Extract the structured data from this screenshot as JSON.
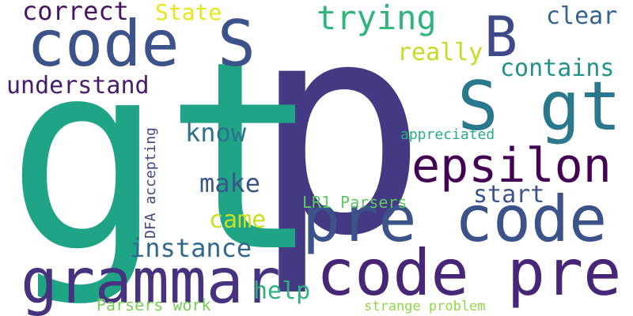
{
  "background_color": "#ffffff",
  "words": [
    {
      "id": "p",
      "text": "p",
      "color": "#443983"
    },
    {
      "id": "gt-large",
      "text": "gt",
      "color": "#20a486"
    },
    {
      "id": "code-s",
      "text": "code S",
      "color": "#3b528b"
    },
    {
      "id": "b",
      "text": "B",
      "color": "#3e4989"
    },
    {
      "id": "s-gt",
      "text": "S gt",
      "color": "#2a788e"
    },
    {
      "id": "pre-code-1",
      "text": "pre code",
      "color": "#3b528b"
    },
    {
      "id": "code-pre",
      "text": "code pre",
      "color": "#482677"
    },
    {
      "id": "grammar",
      "text": "grammar",
      "color": "#46327e"
    },
    {
      "id": "epsilon",
      "text": "epsilon",
      "color": "#440154"
    },
    {
      "id": "correct",
      "text": "correct",
      "color": "#471365"
    },
    {
      "id": "state",
      "text": "State",
      "color": "#e7e419"
    },
    {
      "id": "trying",
      "text": "trying",
      "color": "#2fb47c"
    },
    {
      "id": "clear",
      "text": "clear",
      "color": "#33638d"
    },
    {
      "id": "really",
      "text": "really",
      "color": "#bddf26"
    },
    {
      "id": "contains",
      "text": "contains",
      "color": "#21918c"
    },
    {
      "id": "understand",
      "text": "understand",
      "color": "#481b6d"
    },
    {
      "id": "know",
      "text": "know",
      "color": "#2c728e"
    },
    {
      "id": "appreciated",
      "text": "appreciated",
      "color": "#28ae80"
    },
    {
      "id": "dfa-accepting",
      "text": "DFA accepting",
      "color": "#3f4788"
    },
    {
      "id": "make",
      "text": "make",
      "color": "#39568c"
    },
    {
      "id": "start",
      "text": "start",
      "color": "#3b528b"
    },
    {
      "id": "lr1-parsers",
      "text": "LR1 Parsers",
      "color": "#5ec962"
    },
    {
      "id": "came",
      "text": "came",
      "color": "#c8e020"
    },
    {
      "id": "instance",
      "text": "instance",
      "color": "#31688e"
    },
    {
      "id": "help",
      "text": "help",
      "color": "#2db27d"
    },
    {
      "id": "parsers-work",
      "text": "Parsers work",
      "color": "#75d054"
    },
    {
      "id": "strange-problem",
      "text": "strange problem",
      "color": "#90d743"
    }
  ]
}
